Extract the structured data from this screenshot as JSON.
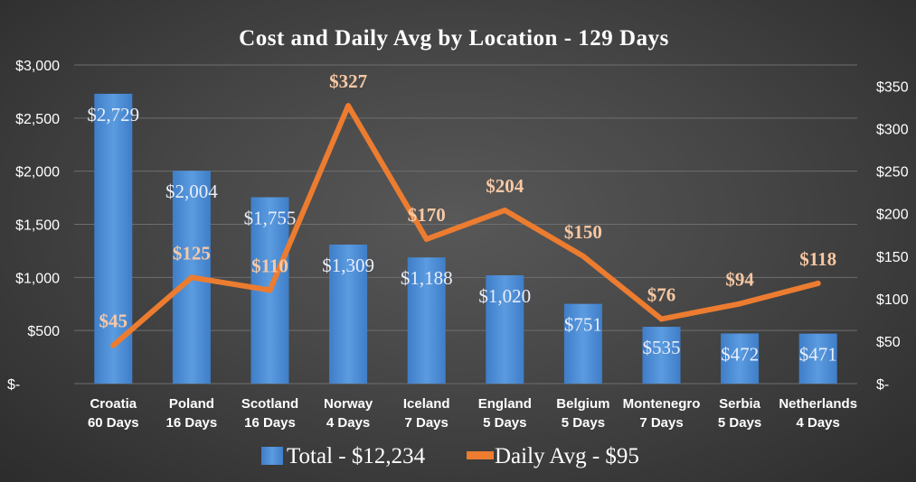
{
  "chart_data": {
    "type": "bar",
    "title": "Cost and Daily Avg by Location - 129 Days",
    "categories": [
      [
        "Croatia",
        "60 Days"
      ],
      [
        "Poland",
        "16 Days"
      ],
      [
        "Scotland",
        "16 Days"
      ],
      [
        "Norway",
        "4 Days"
      ],
      [
        "Iceland",
        "7 Days"
      ],
      [
        "England",
        "5 Days"
      ],
      [
        "Belgium",
        "5 Days"
      ],
      [
        "Montenegro",
        "7 Days"
      ],
      [
        "Serbia",
        "5 Days"
      ],
      [
        "Netherlands",
        "4 Days"
      ]
    ],
    "series": [
      {
        "name": "Total - $12,234",
        "type": "bar",
        "axis": "left",
        "color": "#4d8fd8",
        "values": [
          2729,
          2004,
          1755,
          1309,
          1188,
          1020,
          751,
          535,
          472,
          471
        ],
        "labels": [
          "$2,729",
          "$2,004",
          "$1,755",
          "$1,309",
          "$1,188",
          "$1,020",
          "$751",
          "$535",
          "$472",
          "$471"
        ]
      },
      {
        "name": "Daily Avg - $95",
        "type": "line",
        "axis": "right",
        "color": "#ec7c30",
        "values": [
          45,
          125,
          110,
          327,
          170,
          204,
          150,
          76,
          94,
          118
        ],
        "labels": [
          "$45",
          "$125",
          "$110",
          "$327",
          "$170",
          "$204",
          "$150",
          "$76",
          "$94",
          "$118"
        ]
      }
    ],
    "y_left": {
      "range": [
        0,
        3000
      ],
      "ticks": [
        0,
        500,
        1000,
        1500,
        2000,
        2500,
        3000
      ],
      "tick_labels": [
        "$-",
        "$500",
        "$1,000",
        "$1,500",
        "$2,000",
        "$2,500",
        "$3,000"
      ]
    },
    "y_right": {
      "range": [
        0,
        375
      ],
      "ticks": [
        0,
        50,
        100,
        150,
        200,
        250,
        300,
        350
      ],
      "tick_labels": [
        "$-",
        "$50",
        "$100",
        "$150",
        "$200",
        "$250",
        "$300",
        "$350"
      ]
    },
    "grid": true,
    "legend_position": "bottom"
  }
}
